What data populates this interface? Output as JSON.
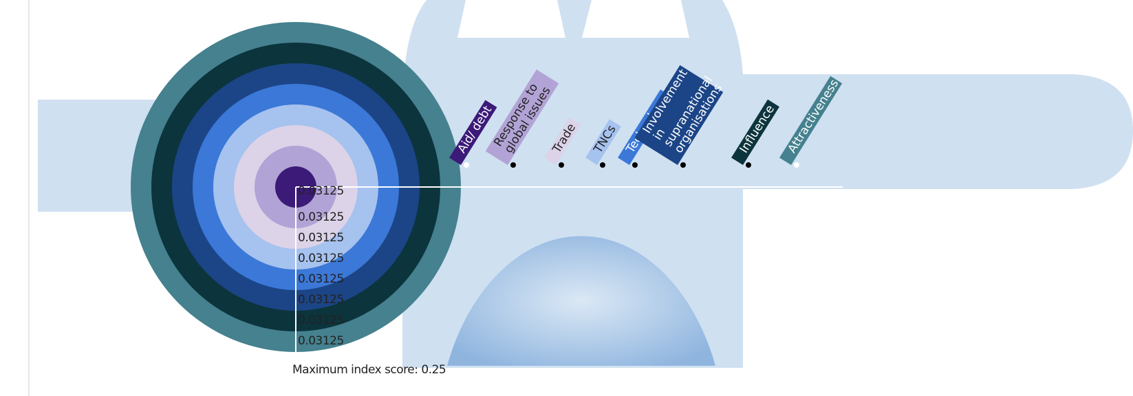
{
  "chart_data": {
    "type": "rings",
    "categories": [
      "Aid/ debt",
      "Response to global issues",
      "Trade",
      "TNCs",
      "Technology",
      "Involvement in supranational organisations",
      "Influence",
      "Attractiveness"
    ],
    "values": [
      0.03125,
      0.03125,
      0.03125,
      0.03125,
      0.03125,
      0.03125,
      0.03125,
      0.03125
    ],
    "colors": [
      "#3b1a78",
      "#b2a3d6",
      "#dcd3e8",
      "#a6c2ee",
      "#3b78d8",
      "#1c4587",
      "#0c343d",
      "#45818e"
    ],
    "annotation": "Maximum index score: 0.25"
  }
}
